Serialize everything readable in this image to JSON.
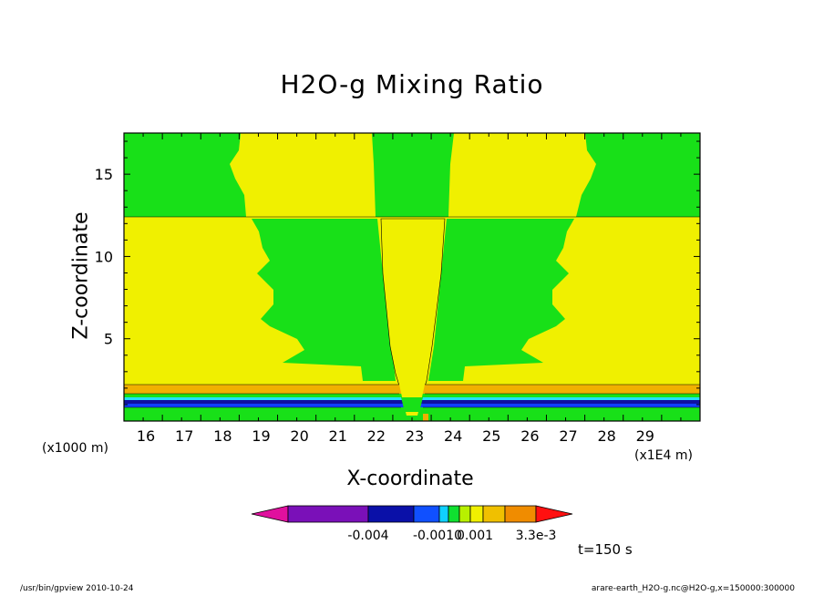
{
  "chart_data": {
    "type": "heatmap",
    "title": "H2O-g Mixing Ratio",
    "xlabel": "X-coordinate",
    "ylabel": "Z-coordinate",
    "x_unit_left": "(x1000 m)",
    "x_unit_right": "(x1E4 m)",
    "x_ticks": [
      "16",
      "17",
      "18",
      "19",
      "20",
      "21",
      "22",
      "23",
      "24",
      "25",
      "26",
      "27",
      "28",
      "29"
    ],
    "y_ticks": [
      "5",
      "10",
      "15"
    ],
    "xlim": [
      15,
      30
    ],
    "ylim": [
      0,
      17.5
    ],
    "grid": false,
    "colorbar": {
      "colors": [
        "#e0109e",
        "#7a10b8",
        "#0a10a8",
        "#1050ff",
        "#10d0ff",
        "#10e030",
        "#b8f000",
        "#f0f000",
        "#f0c000",
        "#f08c00",
        "#ff5000",
        "#ff1010"
      ],
      "labels": [
        "-0.004",
        "-0.0010",
        "0.001",
        "3.3e-3"
      ]
    },
    "colors": {
      "green": "#18e018",
      "yellow": "#f0f000",
      "orange": "#f0b000",
      "lightgreen": "#40ff80",
      "blue": "#1040ff",
      "darkblue": "#1010a0",
      "cyan": "#20e0ff"
    },
    "time_label": "t=150 s"
  },
  "footer": {
    "left": "/usr/bin/gpview   2010-10-24",
    "right": "arare-earth_H2O-g.nc@H2O-g,x=150000:300000"
  }
}
